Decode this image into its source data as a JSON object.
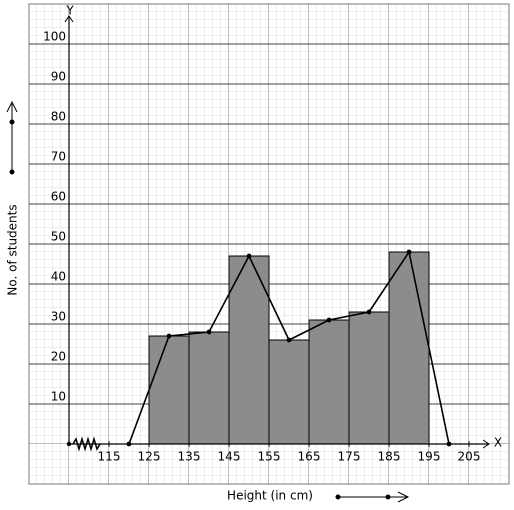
{
  "chart_data": {
    "type": "histogram",
    "x_label": "Height (in cm)",
    "y_label": "No. of students",
    "x_axis_name": "X",
    "y_axis_name": "Y",
    "bins": [
      125,
      135,
      145,
      155,
      165,
      175,
      185,
      195
    ],
    "values": [
      27,
      28,
      47,
      26,
      31,
      33,
      48
    ],
    "color": "#8c8c8c",
    "polygon": {
      "x": [
        120,
        130,
        140,
        150,
        160,
        170,
        180,
        190,
        200
      ],
      "values": [
        0,
        27,
        28,
        47,
        26,
        31,
        33,
        48,
        0
      ],
      "color": "#000000"
    },
    "xlim": [
      105,
      210
    ],
    "ylim": [
      0,
      106
    ],
    "xticks": [
      115,
      125,
      135,
      145,
      155,
      165,
      175,
      185,
      195,
      205
    ],
    "yticks": [
      10,
      20,
      30,
      40,
      50,
      60,
      70,
      80,
      90,
      100
    ],
    "grid": true
  }
}
